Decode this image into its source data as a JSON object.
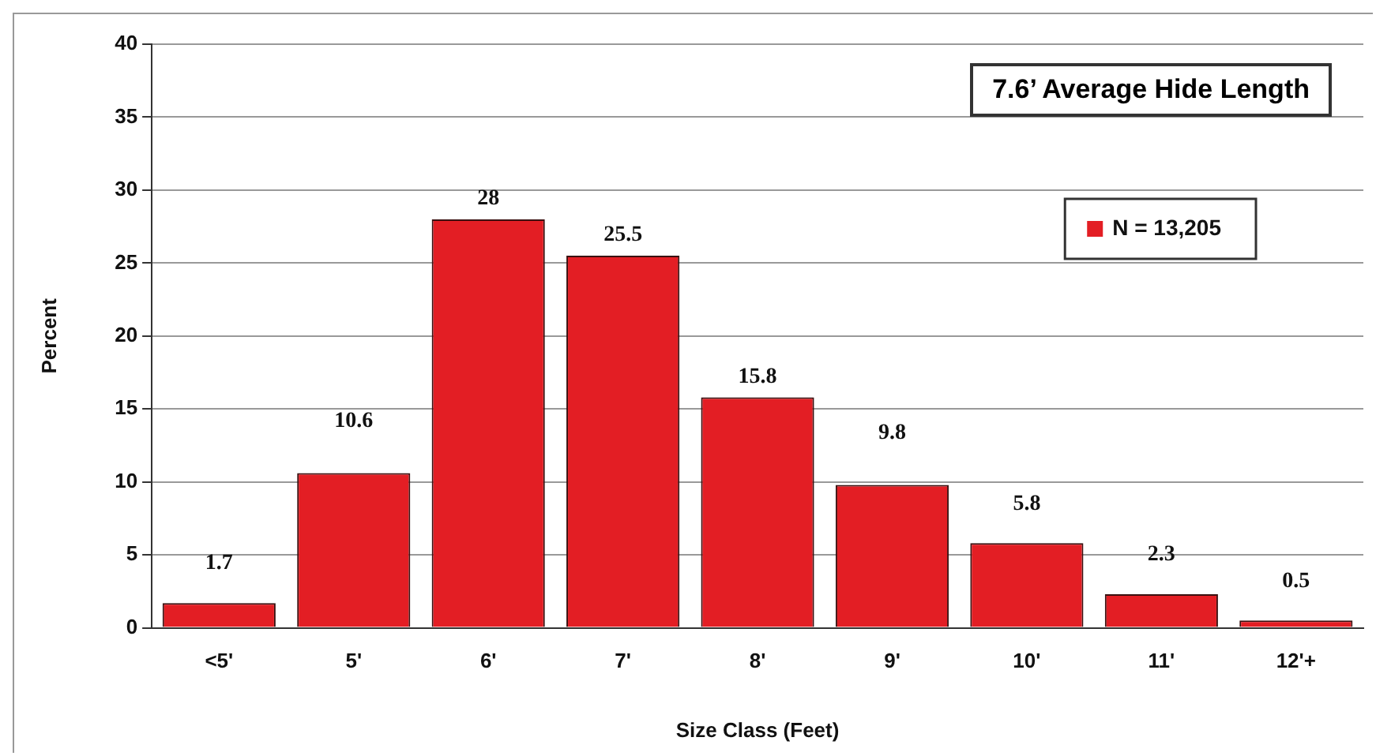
{
  "chart_data": {
    "type": "bar",
    "title": "7.6’ Average Hide Length",
    "xlabel": "Size Class (Feet)",
    "ylabel": "Percent",
    "categories": [
      "<5'",
      "5'",
      "6'",
      "7'",
      "8'",
      "9'",
      "10'",
      "11'",
      "12'+"
    ],
    "series": [
      {
        "name": "N = 13,205",
        "color": "#e31e24",
        "values": [
          1.7,
          10.6,
          28,
          25.5,
          15.8,
          9.8,
          5.8,
          2.3,
          0.5
        ]
      }
    ],
    "ylim": [
      0,
      40
    ],
    "yticks": [
      0,
      5,
      10,
      15,
      20,
      25,
      30,
      35,
      40
    ],
    "grid": "y",
    "legend": "right",
    "data_labels": true
  }
}
